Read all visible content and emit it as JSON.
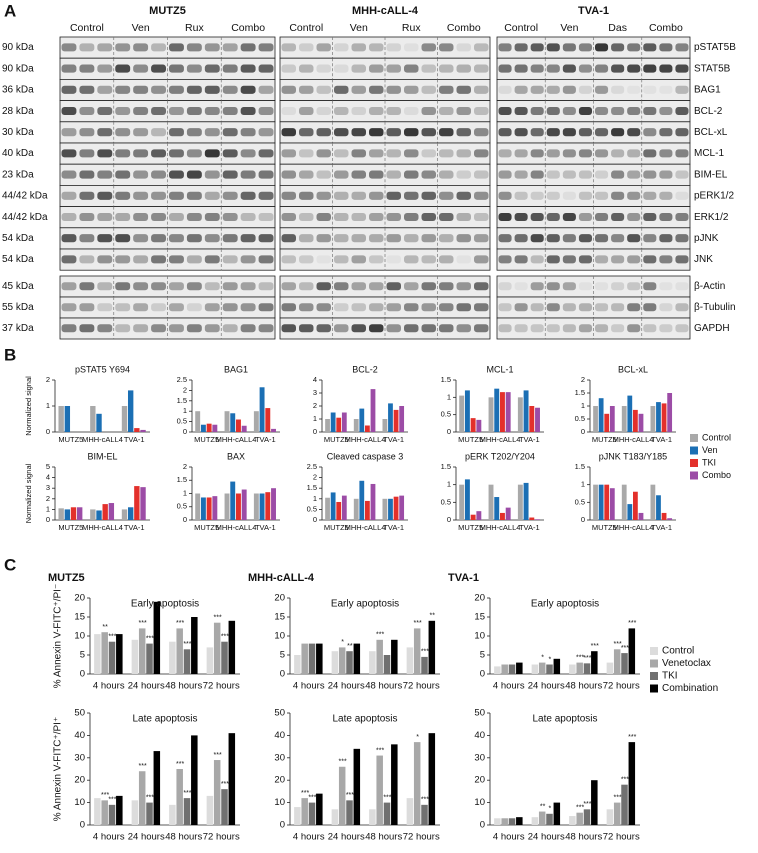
{
  "panel_labels": [
    "A",
    "B",
    "C"
  ],
  "blots": {
    "cell_lines": [
      {
        "name": "MUTZ5",
        "conditions": [
          "Control",
          "Ven",
          "Rux",
          "Combo"
        ]
      },
      {
        "name": "MHH-cALL-4",
        "conditions": [
          "Control",
          "Ven",
          "Rux",
          "Combo"
        ]
      },
      {
        "name": "TVA-1",
        "conditions": [
          "Control",
          "Ven",
          "Das",
          "Combo"
        ]
      }
    ],
    "rows": [
      {
        "kda": "90 kDa",
        "protein": "pSTAT5B"
      },
      {
        "kda": "90 kDa",
        "protein": "STAT5B"
      },
      {
        "kda": "36 kDa",
        "protein": "BAG1"
      },
      {
        "kda": "28 kDa",
        "protein": "BCL-2"
      },
      {
        "kda": "30 kDa",
        "protein": "BCL-xL"
      },
      {
        "kda": "40 kDa",
        "protein": "MCL-1"
      },
      {
        "kda": "23 kDa",
        "protein": "BIM-EL"
      },
      {
        "kda": "44/42 kDa",
        "protein": "pERK1/2"
      },
      {
        "kda": "44/42 kDa",
        "protein": "ERK1/2"
      },
      {
        "kda": "54 kDa",
        "protein": "pJNK"
      },
      {
        "kda": "54 kDa",
        "protein": "JNK"
      }
    ],
    "loading_rows": [
      {
        "kda": "45 kDa",
        "protein": "β-Actin"
      },
      {
        "kda": "55 kDa",
        "protein": "β-Tubulin"
      },
      {
        "kda": "37 kDa",
        "protein": "GAPDH"
      }
    ]
  },
  "chart_data": [
    {
      "type": "bar",
      "title": "pSTAT5 Y694",
      "y_label": "Normalized signal",
      "categories": [
        "MUTZ5",
        "MHH-cALL4",
        "TVA-1"
      ],
      "ylim": [
        0,
        2
      ],
      "yticks": [
        0,
        1,
        2
      ],
      "series": [
        {
          "name": "Control",
          "color": "#a9a9a9",
          "values": [
            1,
            1,
            1
          ]
        },
        {
          "name": "Ven",
          "color": "#1b6fb4",
          "values": [
            1,
            0.7,
            1.6
          ]
        },
        {
          "name": "TKI",
          "color": "#e3302b",
          "values": [
            0,
            0,
            0.15
          ]
        },
        {
          "name": "Combo",
          "color": "#9c4ca6",
          "values": [
            0,
            0,
            0.08
          ]
        }
      ]
    },
    {
      "type": "bar",
      "title": "BAG1",
      "categories": [
        "MUTZ5",
        "MHH-cALL4",
        "TVA-1"
      ],
      "ylim": [
        0,
        2.5
      ],
      "yticks": [
        0,
        0.5,
        1,
        1.5,
        2,
        2.5
      ],
      "series": [
        {
          "name": "Control",
          "color": "#a9a9a9",
          "values": [
            1,
            1,
            1
          ]
        },
        {
          "name": "Ven",
          "color": "#1b6fb4",
          "values": [
            0.35,
            0.9,
            2.15
          ]
        },
        {
          "name": "TKI",
          "color": "#e3302b",
          "values": [
            0.4,
            0.6,
            1.15
          ]
        },
        {
          "name": "Combo",
          "color": "#9c4ca6",
          "values": [
            0.35,
            0.3,
            0.15
          ]
        }
      ]
    },
    {
      "type": "bar",
      "title": "BCL-2",
      "categories": [
        "MUTZ5",
        "MHH-cALL4",
        "TVA-1"
      ],
      "ylim": [
        0,
        4
      ],
      "yticks": [
        0,
        1,
        2,
        3,
        4
      ],
      "series": [
        {
          "name": "Control",
          "color": "#a9a9a9",
          "values": [
            1,
            1,
            1
          ]
        },
        {
          "name": "Ven",
          "color": "#1b6fb4",
          "values": [
            1.5,
            1.8,
            2.2
          ]
        },
        {
          "name": "TKI",
          "color": "#e3302b",
          "values": [
            1.1,
            0.5,
            1.7
          ]
        },
        {
          "name": "Combo",
          "color": "#9c4ca6",
          "values": [
            1.5,
            3.3,
            2
          ]
        }
      ]
    },
    {
      "type": "bar",
      "title": "MCL-1",
      "categories": [
        "MUTZ5",
        "MHH-cALL4",
        "TVA-1"
      ],
      "ylim": [
        0,
        1.5
      ],
      "yticks": [
        0,
        0.5,
        1,
        1.5
      ],
      "series": [
        {
          "name": "Control",
          "color": "#a9a9a9",
          "values": [
            1.05,
            1,
            1
          ]
        },
        {
          "name": "Ven",
          "color": "#1b6fb4",
          "values": [
            1.2,
            1.25,
            1.2
          ]
        },
        {
          "name": "TKI",
          "color": "#e3302b",
          "values": [
            0.4,
            1.15,
            0.75
          ]
        },
        {
          "name": "Combo",
          "color": "#9c4ca6",
          "values": [
            0.35,
            1.15,
            0.7
          ]
        }
      ]
    },
    {
      "type": "bar",
      "title": "BCL-xL",
      "categories": [
        "MUTZ5",
        "MHH-cALL4",
        "TVA-1"
      ],
      "ylim": [
        0,
        2
      ],
      "yticks": [
        0,
        0.5,
        1,
        1.5,
        2
      ],
      "series": [
        {
          "name": "Control",
          "color": "#a9a9a9",
          "values": [
            1,
            1,
            1
          ]
        },
        {
          "name": "Ven",
          "color": "#1b6fb4",
          "values": [
            1.3,
            1.4,
            1.15
          ]
        },
        {
          "name": "TKI",
          "color": "#e3302b",
          "values": [
            0.7,
            0.85,
            1.1
          ]
        },
        {
          "name": "Combo",
          "color": "#9c4ca6",
          "values": [
            1,
            0.7,
            1.5
          ]
        }
      ]
    },
    {
      "type": "bar",
      "title": "BIM-EL",
      "y_label": "Normalized signal",
      "categories": [
        "MUTZ5",
        "MHH-cALL4",
        "TVA-1"
      ],
      "ylim": [
        0,
        5
      ],
      "yticks": [
        0,
        1,
        2,
        3,
        4,
        5
      ],
      "series": [
        {
          "name": "Control",
          "color": "#a9a9a9",
          "values": [
            1.1,
            1,
            1
          ]
        },
        {
          "name": "Ven",
          "color": "#1b6fb4",
          "values": [
            1,
            0.9,
            1.2
          ]
        },
        {
          "name": "TKI",
          "color": "#e3302b",
          "values": [
            1.2,
            1.5,
            3.2
          ]
        },
        {
          "name": "Combo",
          "color": "#9c4ca6",
          "values": [
            1.2,
            1.6,
            3.1
          ]
        }
      ]
    },
    {
      "type": "bar",
      "title": "BAX",
      "categories": [
        "MUTZ5",
        "MHH-cALL4",
        "TVA-1"
      ],
      "ylim": [
        0,
        2
      ],
      "yticks": [
        0,
        0.5,
        1,
        1.5,
        2
      ],
      "series": [
        {
          "name": "Control",
          "color": "#a9a9a9",
          "values": [
            1,
            1,
            1
          ]
        },
        {
          "name": "Ven",
          "color": "#1b6fb4",
          "values": [
            0.85,
            1.45,
            1
          ]
        },
        {
          "name": "TKI",
          "color": "#e3302b",
          "values": [
            0.85,
            1,
            1.05
          ]
        },
        {
          "name": "Combo",
          "color": "#9c4ca6",
          "values": [
            0.9,
            1.15,
            1.2
          ]
        }
      ]
    },
    {
      "type": "bar",
      "title": "Cleaved caspase 3",
      "categories": [
        "MUTZ5",
        "MHH-cALL4",
        "TVA-1"
      ],
      "ylim": [
        0,
        2.5
      ],
      "yticks": [
        0,
        0.5,
        1,
        1.5,
        2,
        2.5
      ],
      "series": [
        {
          "name": "Control",
          "color": "#a9a9a9",
          "values": [
            1.05,
            1,
            1
          ]
        },
        {
          "name": "Ven",
          "color": "#1b6fb4",
          "values": [
            1.3,
            1.85,
            1
          ]
        },
        {
          "name": "TKI",
          "color": "#e3302b",
          "values": [
            0.85,
            0.9,
            1.1
          ]
        },
        {
          "name": "Combo",
          "color": "#9c4ca6",
          "values": [
            1.15,
            1.7,
            1.15
          ]
        }
      ]
    },
    {
      "type": "bar",
      "title": "pERK T202/Y204",
      "categories": [
        "MUTZ5",
        "MHH-cALL4",
        "TVA-1"
      ],
      "ylim": [
        0,
        1.5
      ],
      "yticks": [
        0,
        0.5,
        1,
        1.5
      ],
      "series": [
        {
          "name": "Control",
          "color": "#a9a9a9",
          "values": [
            1,
            1,
            1
          ]
        },
        {
          "name": "Ven",
          "color": "#1b6fb4",
          "values": [
            1.15,
            0.65,
            1.05
          ]
        },
        {
          "name": "TKI",
          "color": "#e3302b",
          "values": [
            0.15,
            0.2,
            0.07
          ]
        },
        {
          "name": "Combo",
          "color": "#9c4ca6",
          "values": [
            0.25,
            0.35,
            0.02
          ]
        }
      ]
    },
    {
      "type": "bar",
      "title": "pJNK T183/Y185",
      "categories": [
        "MUTZ5",
        "MHH-cALL4",
        "TVA-1"
      ],
      "ylim": [
        0,
        1.5
      ],
      "yticks": [
        0,
        0.5,
        1,
        1.5
      ],
      "series": [
        {
          "name": "Control",
          "color": "#a9a9a9",
          "values": [
            1,
            1,
            1
          ]
        },
        {
          "name": "Ven",
          "color": "#1b6fb4",
          "values": [
            1,
            0.45,
            0.7
          ]
        },
        {
          "name": "TKI",
          "color": "#e3302b",
          "values": [
            1,
            0.8,
            0.2
          ]
        },
        {
          "name": "Combo",
          "color": "#9c4ca6",
          "values": [
            0.9,
            0.2,
            0.05
          ]
        }
      ]
    },
    {
      "type": "bar",
      "title": "MUTZ5",
      "annotation": "Early apoptosis",
      "y_label": "% Annexin V-FITC⁺/PI⁻",
      "categories": [
        "4 hours",
        "24 hours",
        "48 hours",
        "72 hours"
      ],
      "ylim": [
        0,
        20
      ],
      "yticks": [
        0,
        5,
        10,
        15,
        20
      ],
      "series": [
        {
          "name": "Control",
          "color": "#dcdcdc",
          "values": [
            10.5,
            9,
            8.5,
            7
          ]
        },
        {
          "name": "Venetoclax",
          "color": "#a8a8a8",
          "values": [
            11,
            12,
            12,
            13.5
          ]
        },
        {
          "name": "TKI",
          "color": "#707070",
          "values": [
            8.5,
            8,
            6.5,
            8.5
          ]
        },
        {
          "name": "Combination",
          "color": "#000000",
          "values": [
            10.5,
            19,
            15,
            14
          ]
        }
      ],
      "significance": [
        [
          null,
          null,
          null,
          null
        ],
        [
          "**",
          "***",
          "***",
          "***"
        ],
        [
          "***",
          "***",
          "***",
          "***"
        ],
        [
          null,
          null,
          null,
          null
        ]
      ]
    },
    {
      "type": "bar",
      "title": "MHH-cALL-4",
      "annotation": "Early apoptosis",
      "categories": [
        "4 hours",
        "24 hours",
        "48 hours",
        "72 hours"
      ],
      "ylim": [
        0,
        20
      ],
      "yticks": [
        0,
        5,
        10,
        15,
        20
      ],
      "series": [
        {
          "name": "Control",
          "color": "#dcdcdc",
          "values": [
            5,
            6,
            6,
            7
          ]
        },
        {
          "name": "Venetoclax",
          "color": "#a8a8a8",
          "values": [
            8,
            7,
            9,
            12
          ]
        },
        {
          "name": "TKI",
          "color": "#707070",
          "values": [
            8,
            6,
            5,
            4.5
          ]
        },
        {
          "name": "Combination",
          "color": "#000000",
          "values": [
            8,
            8,
            9,
            14
          ]
        }
      ],
      "significance": [
        [
          null,
          null,
          null,
          null
        ],
        [
          null,
          "*",
          "***",
          "***"
        ],
        [
          null,
          "**",
          null,
          "***"
        ],
        [
          null,
          null,
          null,
          "**"
        ]
      ]
    },
    {
      "type": "bar",
      "title": "TVA-1",
      "annotation": "Early apoptosis",
      "categories": [
        "4 hours",
        "24 hours",
        "48 hours",
        "72 hours"
      ],
      "ylim": [
        0,
        20
      ],
      "yticks": [
        0,
        5,
        10,
        15,
        20
      ],
      "series": [
        {
          "name": "Control",
          "color": "#dcdcdc",
          "values": [
            2,
            2.5,
            2.5,
            3
          ]
        },
        {
          "name": "Venetoclax",
          "color": "#a8a8a8",
          "values": [
            2.5,
            3,
            3,
            6.5
          ]
        },
        {
          "name": "TKI",
          "color": "#707070",
          "values": [
            2.5,
            2.5,
            2.8,
            5.5
          ]
        },
        {
          "name": "Combination",
          "color": "#000000",
          "values": [
            3,
            4,
            6,
            12
          ]
        }
      ],
      "significance": [
        [
          null,
          null,
          null,
          null
        ],
        [
          null,
          "*",
          "***",
          "***"
        ],
        [
          null,
          "*",
          "***",
          "***"
        ],
        [
          null,
          null,
          "***",
          "***"
        ]
      ]
    },
    {
      "type": "bar",
      "annotation": "Late apoptosis",
      "y_label": "% Annexin V-FITC⁺/PI⁺",
      "categories": [
        "4 hours",
        "24 hours",
        "48 hours",
        "72 hours"
      ],
      "ylim": [
        0,
        50
      ],
      "yticks": [
        0,
        10,
        20,
        30,
        40,
        50
      ],
      "series": [
        {
          "name": "Control",
          "color": "#dcdcdc",
          "values": [
            12,
            11,
            9,
            13
          ]
        },
        {
          "name": "Venetoclax",
          "color": "#a8a8a8",
          "values": [
            11,
            24,
            25,
            29
          ]
        },
        {
          "name": "TKI",
          "color": "#707070",
          "values": [
            9,
            10,
            12,
            16
          ]
        },
        {
          "name": "Combination",
          "color": "#000000",
          "values": [
            13,
            33,
            40,
            41
          ]
        }
      ],
      "significance": [
        [
          null,
          null,
          null,
          null
        ],
        [
          "***",
          "***",
          "***",
          "***"
        ],
        [
          "***",
          "***",
          "***",
          "***"
        ],
        [
          null,
          null,
          null,
          null
        ]
      ]
    },
    {
      "type": "bar",
      "annotation": "Late apoptosis",
      "categories": [
        "4 hours",
        "24 hours",
        "48 hours",
        "72 hours"
      ],
      "ylim": [
        0,
        50
      ],
      "yticks": [
        0,
        10,
        20,
        30,
        40,
        50
      ],
      "series": [
        {
          "name": "Control",
          "color": "#dcdcdc",
          "values": [
            8,
            7,
            7,
            12
          ]
        },
        {
          "name": "Venetoclax",
          "color": "#a8a8a8",
          "values": [
            12,
            26,
            31,
            37
          ]
        },
        {
          "name": "TKI",
          "color": "#707070",
          "values": [
            10,
            11,
            10,
            9
          ]
        },
        {
          "name": "Combination",
          "color": "#000000",
          "values": [
            14,
            34,
            36,
            41
          ]
        }
      ],
      "significance": [
        [
          null,
          null,
          null,
          null
        ],
        [
          "***",
          "***",
          "***",
          "*"
        ],
        [
          "***",
          "***",
          "***",
          "***"
        ],
        [
          null,
          null,
          null,
          null
        ]
      ]
    },
    {
      "type": "bar",
      "annotation": "Late apoptosis",
      "categories": [
        "4 hours",
        "24 hours",
        "48 hours",
        "72 hours"
      ],
      "ylim": [
        0,
        50
      ],
      "yticks": [
        0,
        10,
        20,
        30,
        40,
        50
      ],
      "series": [
        {
          "name": "Control",
          "color": "#dcdcdc",
          "values": [
            3,
            3.5,
            4,
            7
          ]
        },
        {
          "name": "Venetoclax",
          "color": "#a8a8a8",
          "values": [
            3,
            6,
            5.5,
            10
          ]
        },
        {
          "name": "TKI",
          "color": "#707070",
          "values": [
            3,
            5,
            7,
            18
          ]
        },
        {
          "name": "Combination",
          "color": "#000000",
          "values": [
            3.5,
            10,
            20,
            37
          ]
        }
      ],
      "significance": [
        [
          null,
          null,
          null,
          null
        ],
        [
          null,
          "**",
          "***",
          "***"
        ],
        [
          null,
          "*",
          "***",
          "***"
        ],
        [
          null,
          null,
          null,
          "***"
        ]
      ]
    }
  ]
}
